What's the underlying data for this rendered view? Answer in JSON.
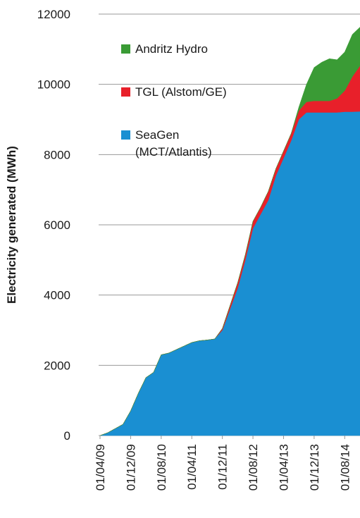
{
  "chart_data": {
    "type": "area",
    "stacked": true,
    "ylabel": "Electricity generated (MWh)",
    "x": [
      "2009-04",
      "2009-06",
      "2009-08",
      "2009-10",
      "2009-12",
      "2010-02",
      "2010-04",
      "2010-06",
      "2010-08",
      "2010-10",
      "2010-12",
      "2011-02",
      "2011-04",
      "2011-06",
      "2011-08",
      "2011-10",
      "2011-12",
      "2012-02",
      "2012-04",
      "2012-06",
      "2012-08",
      "2012-10",
      "2012-12",
      "2013-02",
      "2013-04",
      "2013-06",
      "2013-08",
      "2013-10",
      "2013-12",
      "2014-02",
      "2014-04",
      "2014-06",
      "2014-08",
      "2014-10",
      "2014-12"
    ],
    "xlim": [
      "2009-04",
      "2014-12"
    ],
    "xticks": [
      {
        "value": "2009-04",
        "label": "01/04/09"
      },
      {
        "value": "2009-12",
        "label": "01/12/09"
      },
      {
        "value": "2010-08",
        "label": "01/08/10"
      },
      {
        "value": "2011-04",
        "label": "01/04/11"
      },
      {
        "value": "2011-12",
        "label": "01/12/11"
      },
      {
        "value": "2012-08",
        "label": "01/08/12"
      },
      {
        "value": "2013-04",
        "label": "01/04/13"
      },
      {
        "value": "2013-12",
        "label": "01/12/13"
      },
      {
        "value": "2014-08",
        "label": "01/08/14"
      }
    ],
    "ylim": [
      0,
      12000
    ],
    "yticks": [
      0,
      2000,
      4000,
      6000,
      8000,
      10000,
      12000
    ],
    "grid": true,
    "series": [
      {
        "name": "SeaGen (MCT/Atlantis)",
        "color": "#1a8fd2",
        "values": [
          0,
          80,
          200,
          320,
          700,
          1200,
          1650,
          1800,
          2300,
          2350,
          2450,
          2550,
          2650,
          2700,
          2720,
          2750,
          3000,
          3600,
          4200,
          5000,
          5900,
          6300,
          6700,
          7400,
          7900,
          8400,
          9000,
          9200,
          9200,
          9200,
          9200,
          9200,
          9220,
          9220,
          9230
        ]
      },
      {
        "name": "TGL (Alstom/GE)",
        "color": "#e8202a",
        "values": [
          0,
          0,
          0,
          0,
          0,
          0,
          0,
          0,
          0,
          0,
          0,
          0,
          0,
          0,
          0,
          0,
          50,
          100,
          150,
          150,
          200,
          200,
          250,
          200,
          200,
          200,
          250,
          300,
          330,
          330,
          330,
          400,
          600,
          1000,
          1300
        ]
      },
      {
        "name": "Andritz Hydro",
        "color": "#3a9b35",
        "values": [
          0,
          0,
          0,
          0,
          0,
          0,
          0,
          0,
          0,
          0,
          0,
          0,
          0,
          0,
          0,
          0,
          0,
          0,
          0,
          0,
          0,
          0,
          0,
          0,
          0,
          0,
          100,
          500,
          950,
          1100,
          1200,
          1100,
          1100,
          1200,
          1100
        ]
      }
    ]
  }
}
